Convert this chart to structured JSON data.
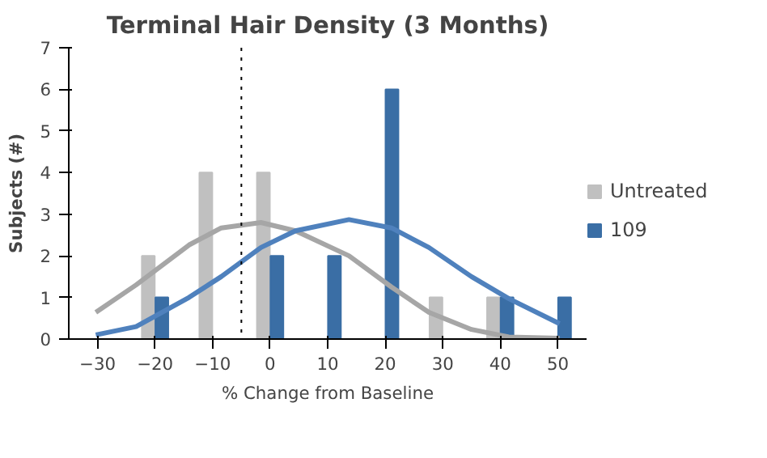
{
  "chart_data": {
    "type": "bar",
    "title": "Terminal Hair Density (3 Months)",
    "xlabel": "% Change from Baseline",
    "ylabel": "Subjects (#)",
    "x": [
      -30,
      -20,
      -10,
      0,
      10,
      20,
      30,
      40,
      50
    ],
    "series": [
      {
        "name": "Untreated",
        "color": "#c0c0c0",
        "values": [
          0,
          2,
          4,
          4,
          0,
          0,
          1,
          1,
          0
        ]
      },
      {
        "name": "109",
        "color": "#3a6ea5",
        "values": [
          0,
          1,
          0,
          2,
          2,
          6,
          0,
          1,
          1
        ]
      },
      {
        "type": "line",
        "color": "#a6a6a6",
        "x": [
          -30.3,
          -23.3,
          -14.1,
          -8.5,
          -1.6,
          4.4,
          13.7,
          21.1,
          27.6,
          35,
          41.5,
          50.3
        ],
        "values": [
          0.64,
          1.3,
          2.26,
          2.67,
          2.8,
          2.6,
          2.0,
          1.25,
          0.64,
          0.23,
          0.05,
          0.02
        ]
      },
      {
        "type": "line",
        "color": "#4f81bd",
        "x": [
          -30.3,
          -23.3,
          -14.1,
          -8.5,
          -1.6,
          4.4,
          13.7,
          21.1,
          27.6,
          35,
          41.5,
          50.3
        ],
        "values": [
          0.1,
          0.3,
          1.0,
          1.5,
          2.2,
          2.6,
          2.87,
          2.67,
          2.2,
          1.5,
          0.97,
          0.37
        ]
      }
    ],
    "xlim": [
      -35,
      55
    ],
    "xticks": [
      -30,
      -20,
      -10,
      0,
      10,
      20,
      30,
      40,
      50
    ],
    "ylim": [
      0,
      7
    ],
    "yticks": [
      0,
      1,
      2,
      3,
      4,
      5,
      6,
      7
    ],
    "ref_lines": [
      {
        "axis": "x",
        "value": -5,
        "color": "#000000",
        "line_style": "dotted"
      }
    ],
    "grid": false,
    "legend": "right"
  }
}
